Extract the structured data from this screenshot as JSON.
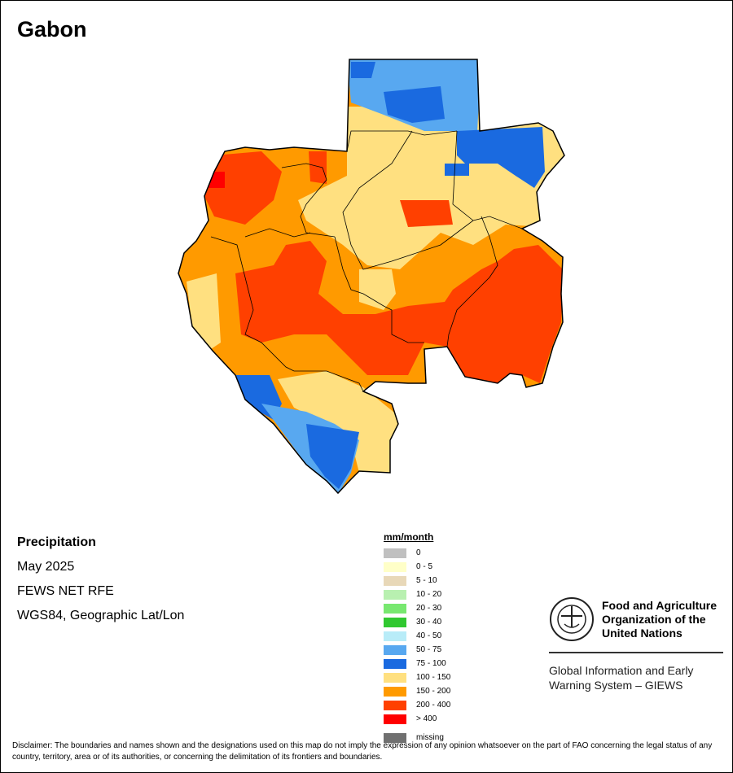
{
  "title": "Gabon",
  "info": {
    "variable": "Precipitation",
    "period": "May 2025",
    "source": "FEWS NET RFE",
    "projection": "WGS84, Geographic Lat/Lon"
  },
  "legend": {
    "unit": "mm/month",
    "classes": [
      {
        "label": "0",
        "color": "#c0c0c0"
      },
      {
        "label": "0 - 5",
        "color": "#ffffc8"
      },
      {
        "label": "5 - 10",
        "color": "#e8d8b8"
      },
      {
        "label": "10 - 20",
        "color": "#b8f0b0"
      },
      {
        "label": "20 - 30",
        "color": "#78e870"
      },
      {
        "label": "30 - 40",
        "color": "#30c830"
      },
      {
        "label": "40 - 50",
        "color": "#b8ecf8"
      },
      {
        "label": "50 - 75",
        "color": "#58a8f0"
      },
      {
        "label": "75 - 100",
        "color": "#1a6ae0"
      },
      {
        "label": "100 - 150",
        "color": "#ffe080"
      },
      {
        "label": "150 - 200",
        "color": "#ff9a00"
      },
      {
        "label": "200 - 400",
        "color": "#ff4000"
      },
      {
        "label": "> 400",
        "color": "#ff0000"
      }
    ],
    "missing": {
      "label": "missing",
      "color": "#707070"
    }
  },
  "branding": {
    "fao_name": [
      "Food and Agriculture",
      "Organization of the",
      "United Nations"
    ],
    "giews_name": [
      "Global Information and Early",
      "Warning System – GIEWS"
    ]
  },
  "disclaimer": "Disclaimer: The boundaries and names shown and the designations used on this map do not imply the expression of any opinion whatsoever on the part of FAO concerning the legal status of any country, territory, area or of its authorities, or concerning the delimitation of its frontiers and boundaries."
}
